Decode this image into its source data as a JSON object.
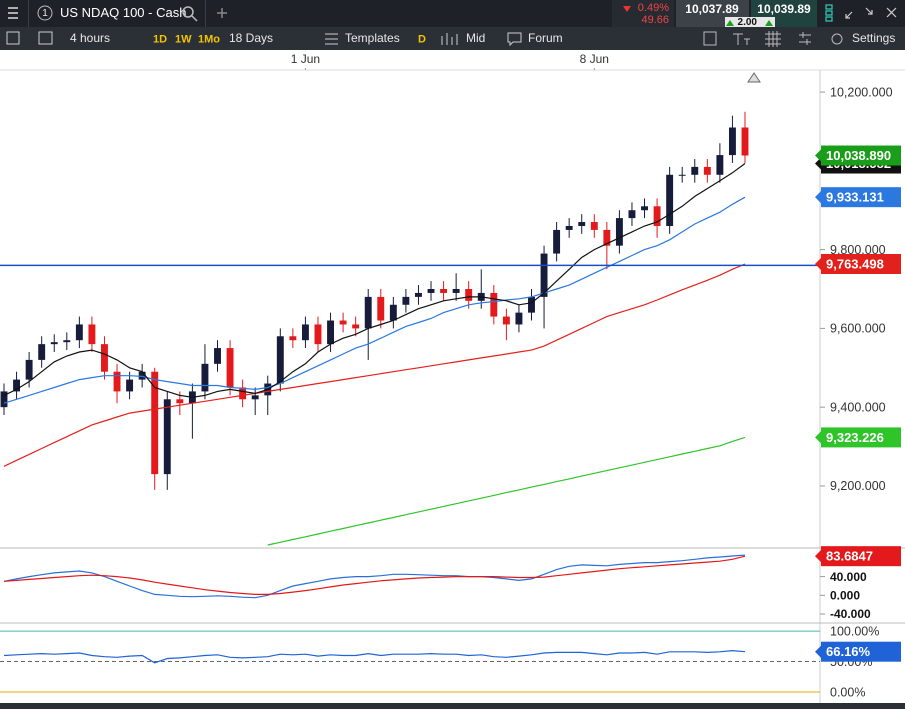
{
  "header": {
    "tab_number": "1",
    "title": "US NDAQ 100 - Cash",
    "change_pct": "0.49%",
    "change": "49.66",
    "sell": "10,037.89",
    "spread": "2.00",
    "buy": "10,039.89"
  },
  "toolbar": {
    "interval": "4 hours",
    "periods": [
      "1D",
      "1W",
      "1Mo"
    ],
    "range": "18 Days",
    "templates": "Templates",
    "mode": "D",
    "price": "Mid",
    "forum": "Forum",
    "settings": "Settings"
  },
  "chart_data": [
    {
      "type": "candlestick",
      "xlim": [
        0,
        59
      ],
      "xticks": [
        {
          "value": 24,
          "label": "1 Jun"
        },
        {
          "value": 47,
          "label": "8 Jun"
        }
      ],
      "ylim": [
        9045,
        10256
      ],
      "yticks": [
        {
          "value": 10200,
          "label": "10,200.000"
        },
        {
          "value": 9800,
          "label": "9,800.000"
        },
        {
          "value": 9600,
          "label": "9,600.000"
        },
        {
          "value": 9400,
          "label": "9,400.000"
        },
        {
          "value": 9200,
          "label": "9,200.000"
        }
      ],
      "up_color": "#161c3a",
      "down_color": "#e3191c",
      "open": [
        9400,
        9440,
        9470,
        9520,
        9560,
        9565,
        9570,
        9610,
        9560,
        9490,
        9440,
        9470,
        9490,
        9230,
        9420,
        9410,
        9440,
        9510,
        9550,
        9450,
        9420,
        9430,
        9460,
        9580,
        9570,
        9610,
        9560,
        9620,
        9610,
        9600,
        9680,
        9620,
        9660,
        9680,
        9690,
        9700,
        9690,
        9700,
        9670,
        9690,
        9630,
        9610,
        9640,
        9680,
        9790,
        9850,
        9860,
        9870,
        9850,
        9810,
        9880,
        9900,
        9910,
        9860,
        9990,
        9990,
        10010,
        9990,
        10040,
        10110
      ],
      "high": [
        9460,
        9490,
        9540,
        9580,
        9585,
        9590,
        9630,
        9630,
        9580,
        9510,
        9490,
        9510,
        9500,
        9440,
        9440,
        9460,
        9560,
        9570,
        9570,
        9470,
        9450,
        9480,
        9600,
        9600,
        9630,
        9630,
        9640,
        9640,
        9630,
        9700,
        9700,
        9680,
        9700,
        9710,
        9720,
        9720,
        9740,
        9720,
        9750,
        9710,
        9650,
        9660,
        9700,
        9810,
        9870,
        9880,
        9890,
        9890,
        9870,
        9900,
        9920,
        9930,
        9930,
        10010,
        10010,
        10030,
        10030,
        10070,
        10140,
        10150
      ],
      "low": [
        9380,
        9420,
        9450,
        9500,
        9540,
        9545,
        9550,
        9540,
        9470,
        9410,
        9420,
        9450,
        9190,
        9190,
        9380,
        9320,
        9420,
        9490,
        9430,
        9400,
        9380,
        9380,
        9440,
        9550,
        9550,
        9540,
        9540,
        9590,
        9580,
        9520,
        9600,
        9600,
        9640,
        9660,
        9670,
        9670,
        9670,
        9650,
        9650,
        9610,
        9570,
        9590,
        9620,
        9600,
        9770,
        9830,
        9840,
        9830,
        9750,
        9790,
        9860,
        9880,
        9830,
        9840,
        9970,
        9970,
        9970,
        9970,
        10020,
        10020
      ],
      "close": [
        9440,
        9470,
        9520,
        9560,
        9565,
        9570,
        9610,
        9560,
        9490,
        9440,
        9470,
        9490,
        9230,
        9420,
        9410,
        9440,
        9510,
        9550,
        9450,
        9420,
        9430,
        9460,
        9580,
        9570,
        9610,
        9560,
        9620,
        9610,
        9600,
        9680,
        9620,
        9660,
        9680,
        9690,
        9700,
        9690,
        9700,
        9670,
        9690,
        9630,
        9610,
        9640,
        9680,
        9790,
        9850,
        9860,
        9870,
        9850,
        9810,
        9880,
        9900,
        9910,
        9860,
        9990,
        9990,
        10010,
        9990,
        10040,
        10110,
        10038.89
      ],
      "close_label": "10,038.890",
      "close_badge_color": "#1a9e1a",
      "hline": 9760,
      "hline_color": "#1a4fc4",
      "series": [
        {
          "color": "#2fc42a",
          "last_label": "9,323.226",
          "values": [
            null,
            null,
            null,
            null,
            null,
            null,
            null,
            null,
            null,
            null,
            null,
            null,
            null,
            null,
            null,
            null,
            null,
            null,
            null,
            null,
            null,
            9050,
            9057,
            9064,
            9071,
            9078,
            9085,
            9092,
            9099,
            9106,
            9113,
            9120,
            9127,
            9134,
            9141,
            9148,
            9155,
            9162,
            9169,
            9176,
            9183,
            9190,
            9197,
            9204,
            9211,
            9218,
            9225,
            9232,
            9239,
            9246,
            9253,
            9260,
            9267,
            9274,
            9281,
            9288,
            9295,
            9302,
            9313,
            9323.226
          ]
        },
        {
          "color": "#e3211c",
          "last_label": "9,763.498",
          "values": [
            9250,
            9265,
            9280,
            9295,
            9310,
            9325,
            9340,
            9355,
            9365,
            9375,
            9385,
            9390,
            9395,
            9400,
            9405,
            9410,
            9415,
            9420,
            9425,
            9430,
            9435,
            9440,
            9445,
            9450,
            9455,
            9460,
            9465,
            9470,
            9475,
            9480,
            9485,
            9490,
            9495,
            9500,
            9505,
            9510,
            9515,
            9520,
            9525,
            9530,
            9535,
            9540,
            9545,
            9555,
            9570,
            9585,
            9600,
            9615,
            9630,
            9640,
            9650,
            9660,
            9672,
            9685,
            9698,
            9710,
            9722,
            9735,
            9750,
            9763.498
          ]
        },
        {
          "color": "#2a78e0",
          "last_label": "9,933.131",
          "values": [
            9410,
            9420,
            9430,
            9440,
            9450,
            9460,
            9470,
            9475,
            9480,
            9480,
            9480,
            9478,
            9470,
            9465,
            9460,
            9455,
            9455,
            9455,
            9450,
            9448,
            9445,
            9450,
            9460,
            9475,
            9490,
            9505,
            9520,
            9535,
            9550,
            9560,
            9575,
            9590,
            9605,
            9615,
            9625,
            9640,
            9650,
            9660,
            9665,
            9668,
            9672,
            9675,
            9680,
            9690,
            9700,
            9710,
            9725,
            9740,
            9755,
            9770,
            9785,
            9800,
            9810,
            9825,
            9845,
            9865,
            9880,
            9895,
            9915,
            9933.131
          ]
        },
        {
          "color": "#111111",
          "last_label": "10,018.582",
          "values": [
            9430,
            9445,
            9465,
            9490,
            9515,
            9530,
            9540,
            9545,
            9535,
            9520,
            9500,
            9490,
            9450,
            9440,
            9430,
            9425,
            9430,
            9440,
            9445,
            9440,
            9435,
            9445,
            9465,
            9490,
            9510,
            9540,
            9560,
            9575,
            9585,
            9600,
            9610,
            9620,
            9635,
            9650,
            9660,
            9670,
            9675,
            9680,
            9680,
            9675,
            9670,
            9660,
            9665,
            9690,
            9720,
            9750,
            9780,
            9800,
            9815,
            9830,
            9845,
            9860,
            9870,
            9890,
            9910,
            9935,
            9955,
            9975,
            9995,
            10018.582
          ]
        }
      ]
    },
    {
      "type": "line",
      "xlim": [
        0,
        59
      ],
      "ylim": [
        -57,
        99
      ],
      "yticks": [
        {
          "value": 40,
          "label": "40.000"
        },
        {
          "value": 0,
          "label": "0.000"
        },
        {
          "value": -40,
          "label": "-40.000"
        }
      ],
      "series": [
        {
          "color": "#2a6fd8",
          "values": [
            30,
            35,
            40,
            44,
            48,
            50,
            52,
            48,
            40,
            30,
            20,
            10,
            2,
            0,
            -2,
            -3,
            -2,
            -1,
            -2,
            -4,
            -5,
            0,
            10,
            20,
            25,
            30,
            35,
            38,
            40,
            40,
            42,
            45,
            45,
            44,
            43,
            42,
            42,
            40,
            40,
            38,
            35,
            32,
            35,
            45,
            55,
            62,
            65,
            64,
            63,
            66,
            68,
            70,
            70,
            72,
            74,
            77,
            80,
            82,
            84,
            86
          ]
        },
        {
          "color": "#e3191c",
          "badge": true,
          "values": [
            30,
            32,
            34,
            36,
            38,
            40,
            42,
            43,
            42,
            40,
            37,
            33,
            28,
            24,
            20,
            16,
            12,
            9,
            6,
            4,
            2,
            2,
            4,
            7,
            10,
            14,
            18,
            22,
            25,
            28,
            31,
            33,
            35,
            37,
            38,
            39,
            40,
            40,
            40,
            40,
            39,
            38,
            38,
            39,
            42,
            45,
            48,
            51,
            54,
            57,
            59,
            61,
            63,
            65,
            67,
            69,
            71,
            73,
            77,
            83.6847
          ]
        }
      ]
    },
    {
      "type": "line",
      "xlim": [
        0,
        59
      ],
      "ylim": [
        -23,
        110
      ],
      "yticks": [
        {
          "value": 100,
          "label": "100.00%"
        },
        {
          "value": 50,
          "label": "50.00%"
        },
        {
          "value": 0,
          "label": "0.00%"
        }
      ],
      "tick_line_colors": [
        "#47b7b0",
        "#666666",
        "#e0b000"
      ],
      "tick_line_styles": [
        "solid",
        "dashed",
        "solid"
      ],
      "series": [
        {
          "color": "#1f63d6",
          "badge": true,
          "last_label": "66.16%",
          "values": [
            60,
            61,
            62,
            63,
            62,
            63,
            64,
            60,
            58,
            57,
            59,
            60,
            48,
            55,
            56,
            58,
            60,
            61,
            57,
            56,
            57,
            58,
            62,
            61,
            62,
            59,
            61,
            60,
            60,
            63,
            60,
            62,
            62,
            62,
            63,
            62,
            62,
            60,
            61,
            58,
            57,
            59,
            61,
            64,
            65,
            65,
            65,
            63,
            61,
            64,
            64,
            65,
            62,
            66,
            66,
            66,
            65,
            66,
            68,
            66.16
          ]
        }
      ]
    }
  ]
}
